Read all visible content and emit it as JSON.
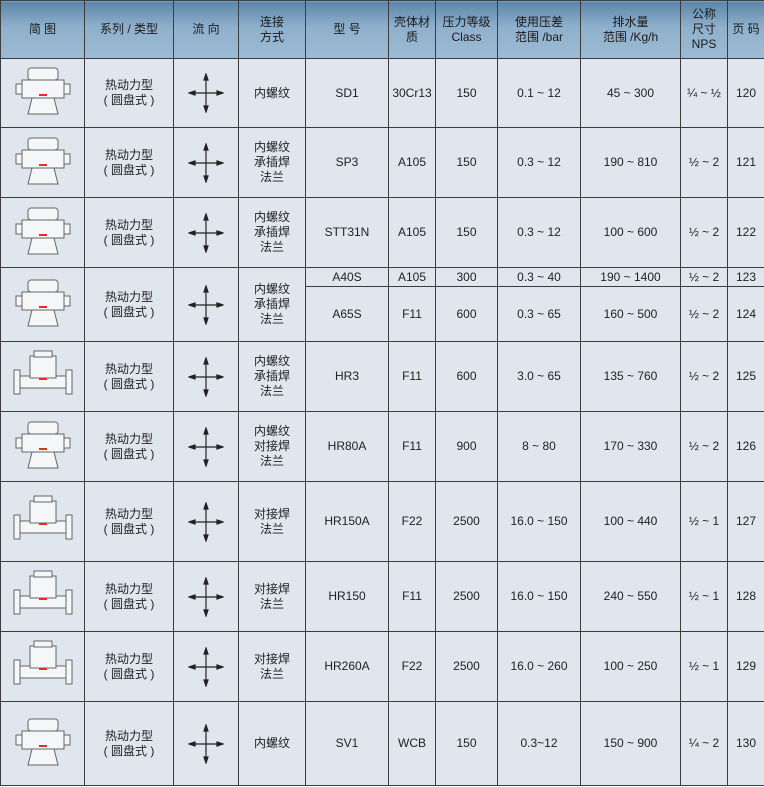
{
  "header": [
    "简 图",
    "系列 / 类型",
    "流 向",
    "连接\n方式",
    "型 号",
    "壳体材\n质",
    "压力等级\nClass",
    "使用压差\n范围 /bar",
    "排水量\n范围 /Kg/h",
    "公称\n尺寸\nNPS",
    "页 码"
  ],
  "colors": {
    "header": "#7aa1c2",
    "cell": "#dfe6ed",
    "marker": "#e03020"
  },
  "rows": [
    {
      "icon": "thermodynamic-trap-sd1-icon",
      "type": "热动力型\n( 圆盘式 )",
      "flow": "cross-arrows-icon",
      "connection": "内螺纹",
      "model": "SD1",
      "material": "30Cr13",
      "class": "150",
      "pressure": "0.1 ~ 12",
      "capacity": "45 ~ 300",
      "nps": "¼ ~ ½",
      "page": "120"
    },
    {
      "icon": "thermodynamic-trap-sp3-icon",
      "type": "热动力型\n( 圆盘式 )",
      "flow": "cross-arrows-icon",
      "connection": "内螺纹\n承插焊\n法兰",
      "model": "SP3",
      "material": "A105",
      "class": "150",
      "pressure": "0.3 ~ 12",
      "capacity": "190 ~ 810",
      "nps": "½ ~ 2",
      "page": "121"
    },
    {
      "icon": "thermodynamic-trap-stt31n-icon",
      "type": "热动力型\n( 圆盘式 )",
      "flow": "cross-arrows-icon",
      "connection": "内螺纹\n承插焊\n法兰",
      "model": "STT31N",
      "material": "A105",
      "class": "150",
      "pressure": "0.3 ~ 12",
      "capacity": "100 ~ 600",
      "nps": "½ ~ 2",
      "page": "122"
    },
    {
      "icon": "thermodynamic-trap-a40s-icon",
      "type": "热动力型\n( 圆盘式 )",
      "flow": "cross-arrows-icon",
      "connection": "内螺纹\n承插焊\n法兰",
      "variants": [
        {
          "model": "A40S",
          "material": "A105",
          "class": "300",
          "pressure": "0.3 ~ 40",
          "capacity": "190 ~ 1400",
          "nps": "½ ~ 2",
          "page": "123"
        },
        {
          "model": "A65S",
          "material": "F11",
          "class": "600",
          "pressure": "0.3 ~ 65",
          "capacity": "160 ~ 500",
          "nps": "½ ~ 2",
          "page": "124"
        }
      ]
    },
    {
      "icon": "thermodynamic-trap-hr3-icon",
      "type": "热动力型\n( 圆盘式 )",
      "flow": "cross-arrows-icon",
      "connection": "内螺纹\n承插焊\n法兰",
      "model": "HR3",
      "material": "F11",
      "class": "600",
      "pressure": "3.0 ~ 65",
      "capacity": "135 ~ 760",
      "nps": "½ ~ 2",
      "page": "125"
    },
    {
      "icon": "thermodynamic-trap-hr80a-icon",
      "type": "热动力型\n( 圆盘式 )",
      "flow": "cross-arrows-icon",
      "connection": "内螺纹\n对接焊\n法兰",
      "model": "HR80A",
      "material": "F11",
      "class": "900",
      "pressure": "8 ~ 80",
      "capacity": "170 ~ 330",
      "nps": "½ ~ 2",
      "page": "126"
    },
    {
      "icon": "thermodynamic-trap-hr150a-icon",
      "type": "热动力型\n( 圆盘式 )",
      "flow": "cross-arrows-icon",
      "connection": "对接焊\n法兰",
      "model": "HR150A",
      "material": "F22",
      "class": "2500",
      "pressure": "16.0 ~ 150",
      "capacity": "100 ~ 440",
      "nps": "½ ~ 1",
      "page": "127"
    },
    {
      "icon": "thermodynamic-trap-hr150-icon",
      "type": "热动力型\n( 圆盘式 )",
      "flow": "cross-arrows-icon",
      "connection": "对接焊\n法兰",
      "model": "HR150",
      "material": "F11",
      "class": "2500",
      "pressure": "16.0 ~ 150",
      "capacity": "240 ~ 550",
      "nps": "½ ~ 1",
      "page": "128"
    },
    {
      "icon": "thermodynamic-trap-hr260a-icon",
      "type": "热动力型\n( 圆盘式 )",
      "flow": "cross-arrows-icon",
      "connection": "对接焊\n法兰",
      "model": "HR260A",
      "material": "F22",
      "class": "2500",
      "pressure": "16.0 ~ 260",
      "capacity": "100 ~ 250",
      "nps": "½ ~ 1",
      "page": "129"
    },
    {
      "icon": "thermodynamic-trap-sv1-icon",
      "type": "热动力型\n( 圆盘式 )",
      "flow": "cross-arrows-icon",
      "connection": "内螺纹",
      "model": "SV1",
      "material": "WCB",
      "class": "150",
      "pressure": "0.3~12",
      "capacity": "150 ~ 900",
      "nps": "¼ ~ 2",
      "page": "130"
    }
  ]
}
